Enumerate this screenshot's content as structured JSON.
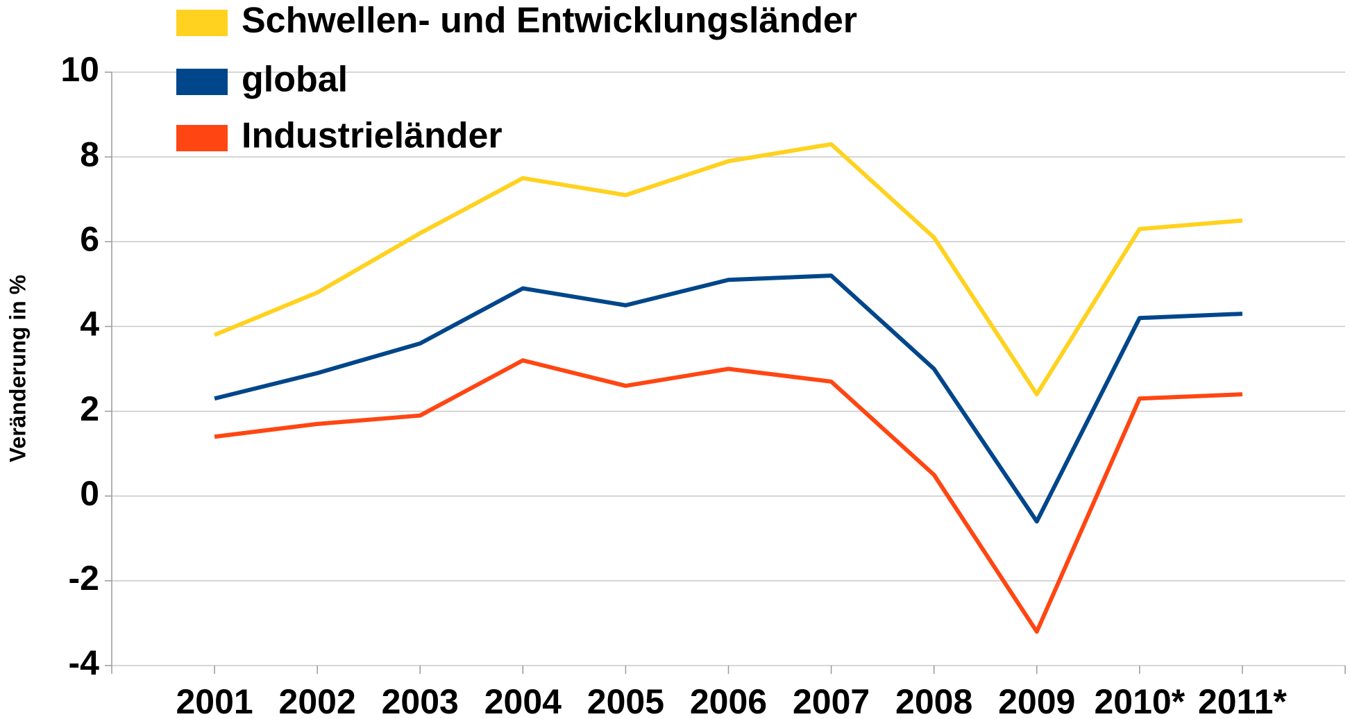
{
  "chart_data": {
    "type": "line",
    "y_label": "Veränderung in %",
    "categories": [
      "2001",
      "2002",
      "2003",
      "2004",
      "2005",
      "2006",
      "2007",
      "2008",
      "2009",
      "2010*",
      "2011*"
    ],
    "series": [
      {
        "name": "Schwellen- und Entwicklungsländer",
        "color": "#ffd21f",
        "values": [
          3.8,
          4.8,
          6.2,
          7.5,
          7.1,
          7.9,
          8.3,
          6.1,
          2.4,
          6.3,
          6.5
        ]
      },
      {
        "name": "global",
        "color": "#00468b",
        "values": [
          2.3,
          2.9,
          3.6,
          4.9,
          4.5,
          5.1,
          5.2,
          3.0,
          -0.6,
          4.2,
          4.3
        ]
      },
      {
        "name": "Industrieländer",
        "color": "#ff4612",
        "values": [
          1.4,
          1.7,
          1.9,
          3.2,
          2.6,
          3.0,
          2.7,
          0.5,
          -3.2,
          2.3,
          2.4
        ]
      }
    ],
    "ylim": [
      -4,
      10
    ],
    "yticks": [
      -4,
      -2,
      0,
      2,
      4,
      6,
      8,
      10
    ],
    "grid": true,
    "legend": "top-left"
  }
}
